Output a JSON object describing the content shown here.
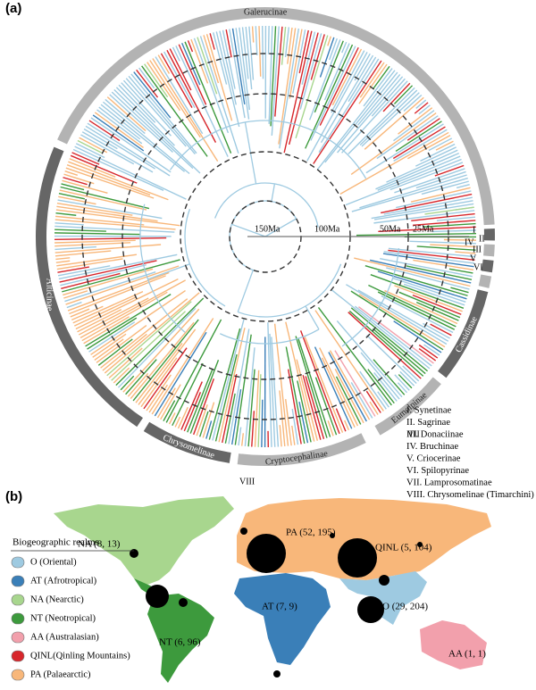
{
  "panel_a": {
    "label": "(a)",
    "clades": [
      {
        "name": "Galerucinae",
        "ring_color": "#b3b3b3"
      },
      {
        "name": "Cassidinae",
        "ring_color": "#666666"
      },
      {
        "name": "Eumolpinae",
        "ring_color": "#b3b3b3"
      },
      {
        "name": "Cryptocephalinae",
        "ring_color": "#b3b3b3"
      },
      {
        "name": "Chrysomelinae",
        "ring_color": "#666666"
      },
      {
        "name": "Alticinae",
        "ring_color": "#666666"
      }
    ],
    "time_labels": [
      "150Ma",
      "100Ma",
      "50Ma",
      "25Ma"
    ],
    "numerals": [
      "I",
      "II",
      "III",
      "IV",
      "V",
      "VI",
      "VII",
      "VIII"
    ],
    "key": [
      "I. Synetinae",
      "II. Sagrinae",
      "III. Donaciinae",
      "IV. Bruchinae",
      "V. Criocerinae",
      "VI. Spilopyrinae",
      "VII. Lamprosomatinae",
      "VIII. Chrysomelinae (Timarchini)"
    ]
  },
  "panel_b": {
    "label": "(b)",
    "legend_title": "Biogeographic realms",
    "legend": [
      {
        "label": "O (Oriental)",
        "color": "#9ecae1"
      },
      {
        "label": "AT (Afrotropical)",
        "color": "#3a7fb8"
      },
      {
        "label": "NA (Nearctic)",
        "color": "#a8d68e"
      },
      {
        "label": "NT (Neotropical)",
        "color": "#3d9a3d"
      },
      {
        "label": "AA (Australasian)",
        "color": "#f2a0ac"
      },
      {
        "label": "QINL(Qinling Mountains)",
        "color": "#d7262b"
      },
      {
        "label": "PA (Palaearctic)",
        "color": "#f8b77a"
      }
    ],
    "regions": [
      "NA (8, 13)",
      "PA (52, 195)",
      "QINL (5, 104)",
      "O (29, 204)",
      "AT (7, 9)",
      "NT (6, 96)",
      "AA (1, 1)"
    ]
  }
}
